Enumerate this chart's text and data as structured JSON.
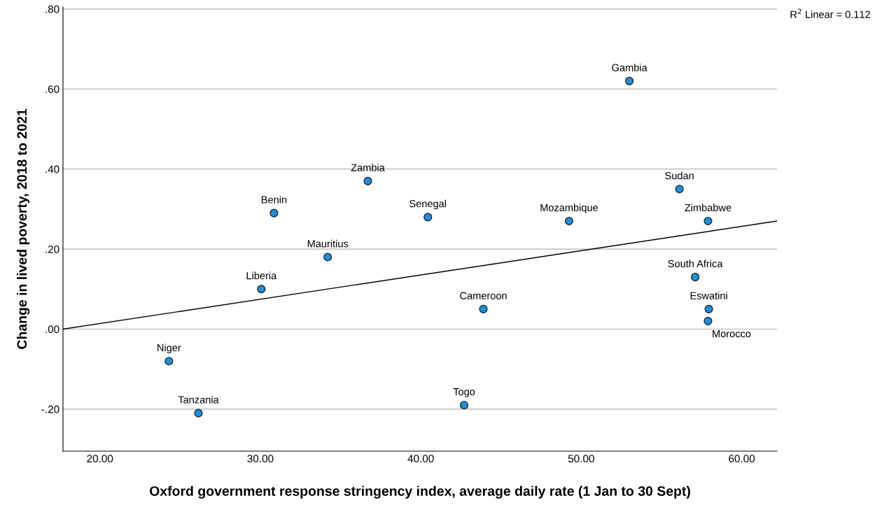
{
  "chart_data": {
    "type": "scatter",
    "xlabel": "Oxford government response stringency index, average daily rate (1 Jan to 30 Sept)",
    "ylabel": "Change in lived poverty, 2018 to 2021",
    "xlim": [
      17.7,
      62.2
    ],
    "ylim": [
      -0.305,
      0.805
    ],
    "xticks": [
      {
        "value": 20,
        "label": "20.00"
      },
      {
        "value": 30,
        "label": "30.00"
      },
      {
        "value": 40,
        "label": "40.00"
      },
      {
        "value": 50,
        "label": "50.00"
      },
      {
        "value": 60,
        "label": "60.00"
      }
    ],
    "yticks": [
      {
        "value": -0.2,
        "label": "-.20"
      },
      {
        "value": 0,
        "label": ".00"
      },
      {
        "value": 0.2,
        "label": ".20"
      },
      {
        "value": 0.4,
        "label": ".40"
      },
      {
        "value": 0.6,
        "label": ".60"
      },
      {
        "value": 0.8,
        "label": ".80"
      }
    ],
    "grid": "y",
    "series": [
      {
        "color": "#1f8fd8",
        "marker": "circle",
        "x": [
          53.0,
          36.7,
          30.85,
          40.44,
          49.24,
          56.12,
          57.9,
          34.2,
          30.06,
          57.1,
          43.9,
          57.95,
          57.9,
          24.3,
          26.14,
          42.7
        ],
        "values": [
          0.62,
          0.37,
          0.29,
          0.28,
          0.27,
          0.35,
          0.27,
          0.18,
          0.1,
          0.13,
          0.05,
          0.05,
          0.02,
          -0.08,
          -0.21,
          -0.19
        ]
      },
      {
        "type": "line",
        "marker": "none",
        "color": "#000000",
        "x": [
          17.7,
          62.2
        ],
        "values": [
          0.0,
          0.27
        ]
      }
    ],
    "annotations": [
      {
        "text": "Gambia",
        "x": 53.0,
        "y": 0.62
      },
      {
        "text": "Zambia",
        "x": 36.7,
        "y": 0.37
      },
      {
        "text": "Benin",
        "x": 30.85,
        "y": 0.29
      },
      {
        "text": "Senegal",
        "x": 40.44,
        "y": 0.28
      },
      {
        "text": "Mozambique",
        "x": 49.24,
        "y": 0.27
      },
      {
        "text": "Sudan",
        "x": 56.12,
        "y": 0.35
      },
      {
        "text": "Zimbabwe",
        "x": 57.9,
        "y": 0.27
      },
      {
        "text": "Mauritius",
        "x": 34.2,
        "y": 0.18
      },
      {
        "text": "Liberia",
        "x": 30.06,
        "y": 0.1
      },
      {
        "text": "South Africa",
        "x": 57.1,
        "y": 0.13
      },
      {
        "text": "Cameroon",
        "x": 43.9,
        "y": 0.05
      },
      {
        "text": "Eswatini",
        "x": 57.95,
        "y": 0.05
      },
      {
        "text": "Morocco",
        "x": 57.9,
        "y": 0.02
      },
      {
        "text": "Niger",
        "x": 24.3,
        "y": -0.08
      },
      {
        "text": "Tanzania",
        "x": 26.14,
        "y": -0.21
      },
      {
        "text": "Togo",
        "x": 42.7,
        "y": -0.19
      },
      "R$^{2}$ Linear = 0.112"
    ]
  }
}
